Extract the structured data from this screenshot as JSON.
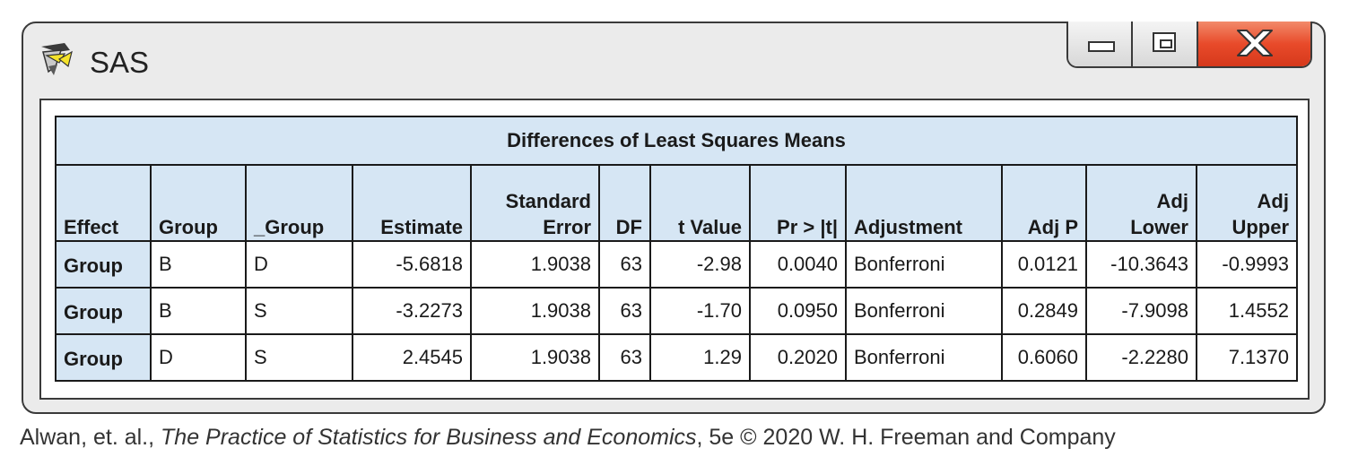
{
  "window": {
    "title": "SAS",
    "icon": "sas-app-icon",
    "controls": {
      "minimize": "minimize-icon",
      "maximize": "maximize-icon",
      "close": "close-icon"
    }
  },
  "table": {
    "caption": "Differences of Least Squares Means",
    "headers": [
      [
        "Effect"
      ],
      [
        "Group"
      ],
      [
        "_Group"
      ],
      [
        "Estimate"
      ],
      [
        "Standard",
        "Error"
      ],
      [
        "DF"
      ],
      [
        "t Value"
      ],
      [
        "Pr > |t|"
      ],
      [
        "Adjustment"
      ],
      [
        "Adj P"
      ],
      [
        "Adj",
        "Lower"
      ],
      [
        "Adj",
        "Upper"
      ]
    ],
    "rows": [
      [
        "Group",
        "B",
        "D",
        "-5.6818",
        "1.9038",
        "63",
        "-2.98",
        "0.0040",
        "Bonferroni",
        "0.0121",
        "-10.3643",
        "-0.9993"
      ],
      [
        "Group",
        "B",
        "S",
        "-3.2273",
        "1.9038",
        "63",
        "-1.70",
        "0.0950",
        "Bonferroni",
        "0.2849",
        "-7.9098",
        "1.4552"
      ],
      [
        "Group",
        "D",
        "S",
        "2.4545",
        "1.9038",
        "63",
        "1.29",
        "0.2020",
        "Bonferroni",
        "0.6060",
        "-2.2280",
        "7.1370"
      ]
    ]
  },
  "credit": {
    "prefix": "Alwan, et. al., ",
    "book": "The Practice of Statistics for Business and Economics",
    "suffix": ", 5e © 2020 W. H. Freeman and Company"
  }
}
